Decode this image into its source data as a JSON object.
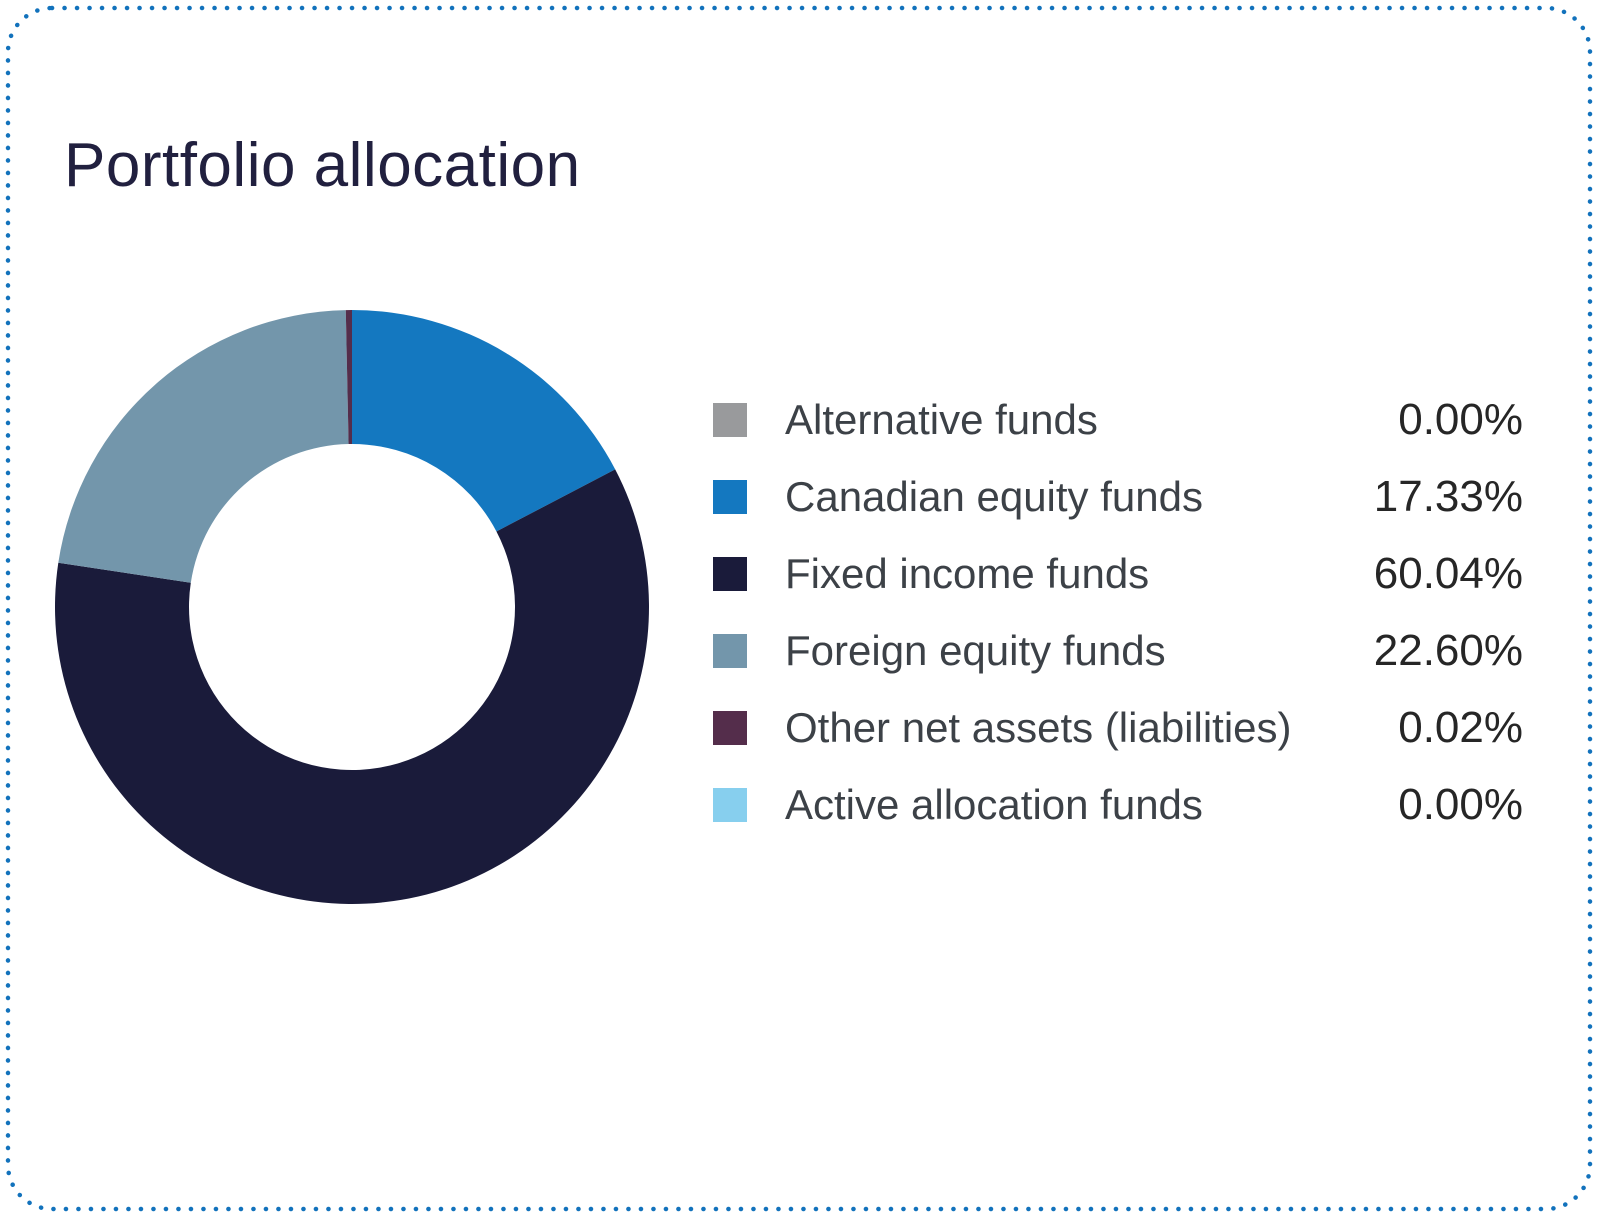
{
  "page": {
    "background": "#ffffff",
    "border_color": "#1272bc"
  },
  "chart_data": {
    "type": "pie",
    "donut": true,
    "title": "Portfolio allocation",
    "title_color": "#21203f",
    "legend_position": "right",
    "segments": [
      {
        "label": "Alternative funds",
        "value": 0.0,
        "display": "0.00%",
        "color": "#999a9c"
      },
      {
        "label": "Canadian equity funds",
        "value": 17.33,
        "display": "17.33%",
        "color": "#1478c0"
      },
      {
        "label": "Fixed income funds",
        "value": 60.04,
        "display": "60.04%",
        "color": "#1a1b3a"
      },
      {
        "label": "Foreign equity funds",
        "value": 22.6,
        "display": "22.60%",
        "color": "#7396ab"
      },
      {
        "label": "Other net assets (liabilities)",
        "value": 0.02,
        "display": "0.02%",
        "color": "#542d4b"
      },
      {
        "label": "Active allocation funds",
        "value": 0.0,
        "display": "0.00%",
        "color": "#87cfee"
      }
    ]
  }
}
